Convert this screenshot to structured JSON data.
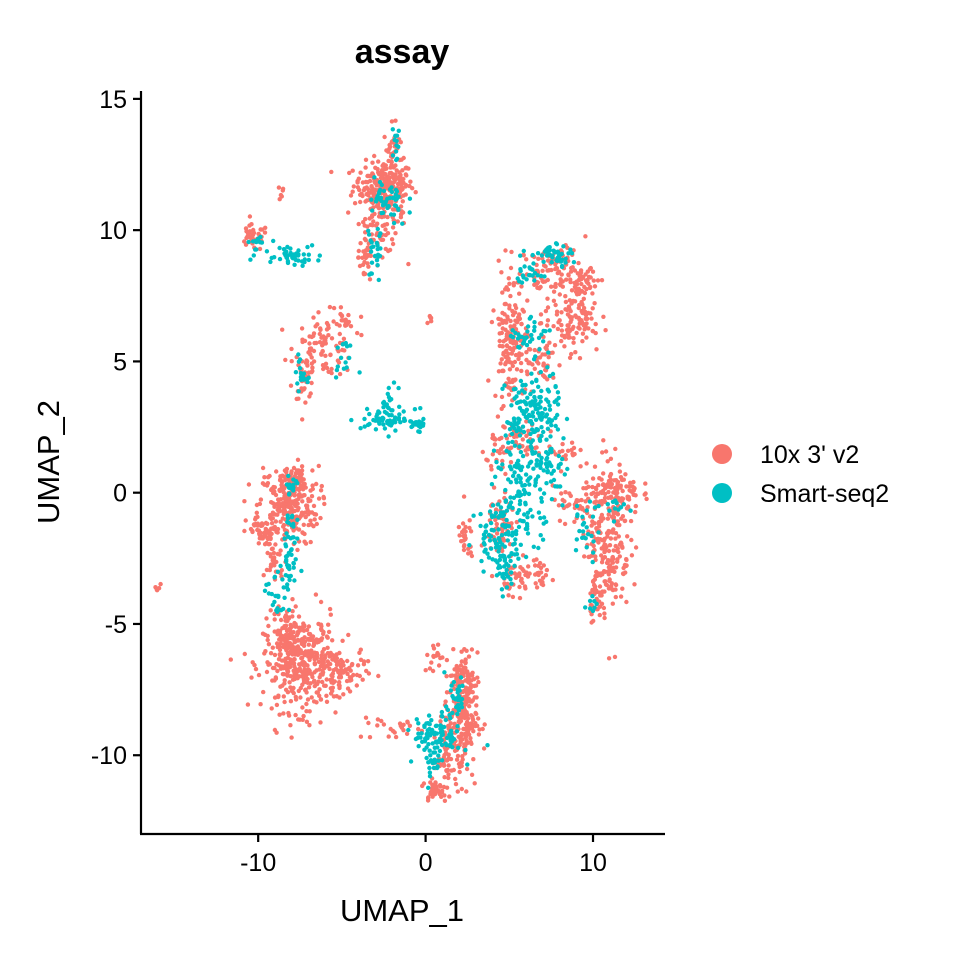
{
  "chart_data": {
    "type": "scatter",
    "title": "assay",
    "xlabel": "UMAP_1",
    "ylabel": "UMAP_2",
    "xlim": [
      -17,
      14.3
    ],
    "ylim": [
      -13,
      15.3
    ],
    "x_ticks": [
      -10,
      0,
      10
    ],
    "y_ticks": [
      15,
      10,
      5,
      0,
      -5,
      -10
    ],
    "x_tick_labels": [
      "-10",
      "0",
      "10"
    ],
    "y_tick_labels": [
      "15",
      "10",
      "5",
      "0",
      "-5",
      "-10"
    ],
    "grid": false,
    "legend_position": "right",
    "series": [
      {
        "name": "10x 3' v2",
        "color": "#F8766D",
        "clusters": [
          {
            "x": -2.5,
            "y": 11.7,
            "sx": 0.9,
            "sy": 0.45,
            "n": 180
          },
          {
            "x": -2.0,
            "y": 12.9,
            "sx": 0.25,
            "sy": 0.55,
            "n": 45
          },
          {
            "x": -2.6,
            "y": 10.5,
            "sx": 0.7,
            "sy": 0.7,
            "n": 110
          },
          {
            "x": -3.6,
            "y": 9.0,
            "sx": 0.2,
            "sy": 0.6,
            "n": 25
          },
          {
            "x": -10.3,
            "y": 9.7,
            "sx": 0.45,
            "sy": 0.25,
            "n": 40
          },
          {
            "x": -8.6,
            "y": 11.4,
            "sx": 0.12,
            "sy": 0.15,
            "n": 6
          },
          {
            "x": -6.0,
            "y": 5.6,
            "sx": 0.9,
            "sy": 0.6,
            "n": 90
          },
          {
            "x": -7.2,
            "y": 4.4,
            "sx": 0.3,
            "sy": 0.4,
            "n": 30
          },
          {
            "x": -4.8,
            "y": 6.5,
            "sx": 0.3,
            "sy": 0.25,
            "n": 15
          },
          {
            "x": 0.2,
            "y": 6.6,
            "sx": 0.1,
            "sy": 0.12,
            "n": 6
          },
          {
            "x": -8.2,
            "y": -0.5,
            "sx": 0.9,
            "sy": 0.75,
            "n": 250
          },
          {
            "x": -7.8,
            "y": 0.5,
            "sx": 0.3,
            "sy": 0.25,
            "n": 50
          },
          {
            "x": -9.7,
            "y": -1.5,
            "sx": 0.5,
            "sy": 0.3,
            "n": 45
          },
          {
            "x": -9.0,
            "y": -2.5,
            "sx": 0.3,
            "sy": 0.5,
            "n": 30
          },
          {
            "x": -7.5,
            "y": -6.5,
            "sx": 1.1,
            "sy": 0.9,
            "n": 380
          },
          {
            "x": -5.2,
            "y": -6.8,
            "sx": 0.8,
            "sy": 0.45,
            "n": 90
          },
          {
            "x": -8.3,
            "y": -5.3,
            "sx": 0.4,
            "sy": 0.4,
            "n": 50
          },
          {
            "x": -16.0,
            "y": -3.6,
            "sx": 0.08,
            "sy": 0.1,
            "n": 6
          },
          {
            "x": 2.1,
            "y": -8.5,
            "sx": 0.5,
            "sy": 1.2,
            "n": 230
          },
          {
            "x": 2.3,
            "y": -7.2,
            "sx": 0.4,
            "sy": 0.4,
            "n": 40
          },
          {
            "x": 0.6,
            "y": -11.3,
            "sx": 0.4,
            "sy": 0.25,
            "n": 35
          },
          {
            "x": 1.3,
            "y": -10.3,
            "sx": 0.4,
            "sy": 0.5,
            "n": 40
          },
          {
            "x": -2.0,
            "y": -8.9,
            "sx": 1.0,
            "sy": 0.25,
            "n": 25
          },
          {
            "x": 0.7,
            "y": -6.3,
            "sx": 0.4,
            "sy": 0.3,
            "n": 15
          },
          {
            "x": 5.0,
            "y": 6.0,
            "sx": 0.45,
            "sy": 1.3,
            "n": 150
          },
          {
            "x": 7.8,
            "y": 8.4,
            "sx": 1.1,
            "sy": 0.5,
            "n": 110
          },
          {
            "x": 8.5,
            "y": 6.4,
            "sx": 0.8,
            "sy": 0.5,
            "n": 80
          },
          {
            "x": 9.3,
            "y": 7.5,
            "sx": 0.4,
            "sy": 0.8,
            "n": 60
          },
          {
            "x": 6.6,
            "y": 5.0,
            "sx": 0.8,
            "sy": 0.5,
            "n": 50
          },
          {
            "x": 5.5,
            "y": 2.0,
            "sx": 0.8,
            "sy": 0.3,
            "n": 50
          },
          {
            "x": 8.3,
            "y": 1.6,
            "sx": 0.4,
            "sy": 0.35,
            "n": 20
          },
          {
            "x": 10.9,
            "y": -1.7,
            "sx": 0.65,
            "sy": 1.5,
            "n": 220
          },
          {
            "x": 11.4,
            "y": 0.0,
            "sx": 0.7,
            "sy": 0.4,
            "n": 80
          },
          {
            "x": 10.2,
            "y": -4.0,
            "sx": 0.25,
            "sy": 0.4,
            "n": 25
          },
          {
            "x": 9.0,
            "y": -0.5,
            "sx": 0.7,
            "sy": 0.35,
            "n": 40
          },
          {
            "x": 4.5,
            "y": -1.3,
            "sx": 0.4,
            "sy": 0.8,
            "n": 60
          },
          {
            "x": 5.5,
            "y": -3.2,
            "sx": 0.4,
            "sy": 0.3,
            "n": 35
          },
          {
            "x": 6.8,
            "y": -3.2,
            "sx": 0.5,
            "sy": 0.25,
            "n": 30
          },
          {
            "x": 2.4,
            "y": -1.8,
            "sx": 0.25,
            "sy": 0.5,
            "n": 25
          },
          {
            "x": 4.3,
            "y": 1.3,
            "sx": 0.5,
            "sy": 0.3,
            "n": 20
          }
        ]
      },
      {
        "name": "Smart-seq2",
        "color": "#00BFC4",
        "clusters": [
          {
            "x": -2.3,
            "y": 11.0,
            "sx": 0.6,
            "sy": 0.5,
            "n": 45
          },
          {
            "x": -3.0,
            "y": 9.2,
            "sx": 0.25,
            "sy": 0.6,
            "n": 25
          },
          {
            "x": -1.8,
            "y": 13.2,
            "sx": 0.15,
            "sy": 0.3,
            "n": 12
          },
          {
            "x": -8.0,
            "y": 9.1,
            "sx": 0.9,
            "sy": 0.2,
            "n": 45
          },
          {
            "x": -10.0,
            "y": 9.5,
            "sx": 0.3,
            "sy": 0.15,
            "n": 12
          },
          {
            "x": -7.5,
            "y": 4.5,
            "sx": 0.2,
            "sy": 0.3,
            "n": 18
          },
          {
            "x": -4.9,
            "y": 5.1,
            "sx": 0.3,
            "sy": 0.3,
            "n": 15
          },
          {
            "x": -2.2,
            "y": 2.8,
            "sx": 0.8,
            "sy": 0.2,
            "n": 55
          },
          {
            "x": -2.2,
            "y": 3.3,
            "sx": 0.25,
            "sy": 0.5,
            "n": 20
          },
          {
            "x": -0.6,
            "y": 2.6,
            "sx": 0.5,
            "sy": 0.12,
            "n": 20
          },
          {
            "x": -8.1,
            "y": -2.3,
            "sx": 0.25,
            "sy": 0.9,
            "n": 45
          },
          {
            "x": -8.9,
            "y": -4.0,
            "sx": 0.3,
            "sy": 0.6,
            "n": 25
          },
          {
            "x": -8.0,
            "y": 0.3,
            "sx": 0.3,
            "sy": 0.2,
            "n": 15
          },
          {
            "x": 0.7,
            "y": -9.3,
            "sx": 0.7,
            "sy": 0.35,
            "n": 90
          },
          {
            "x": 1.8,
            "y": -7.8,
            "sx": 0.3,
            "sy": 0.6,
            "n": 35
          },
          {
            "x": 0.3,
            "y": -10.4,
            "sx": 0.35,
            "sy": 0.3,
            "n": 20
          },
          {
            "x": 6.4,
            "y": 3.0,
            "sx": 0.8,
            "sy": 0.8,
            "n": 150
          },
          {
            "x": 6.0,
            "y": 0.2,
            "sx": 0.9,
            "sy": 1.0,
            "n": 130
          },
          {
            "x": 4.4,
            "y": -1.6,
            "sx": 0.7,
            "sy": 0.6,
            "n": 85
          },
          {
            "x": 4.8,
            "y": -3.0,
            "sx": 0.3,
            "sy": 0.35,
            "n": 30
          },
          {
            "x": 7.8,
            "y": 9.1,
            "sx": 0.5,
            "sy": 0.2,
            "n": 45
          },
          {
            "x": 6.2,
            "y": 8.5,
            "sx": 0.4,
            "sy": 0.3,
            "n": 25
          },
          {
            "x": 6.2,
            "y": 6.0,
            "sx": 0.6,
            "sy": 0.5,
            "n": 35
          },
          {
            "x": 7.5,
            "y": 1.0,
            "sx": 0.5,
            "sy": 0.35,
            "n": 25
          },
          {
            "x": 9.5,
            "y": -1.5,
            "sx": 0.4,
            "sy": 0.6,
            "n": 25
          },
          {
            "x": 11.3,
            "y": -0.6,
            "sx": 0.4,
            "sy": 0.3,
            "n": 12
          },
          {
            "x": 10.0,
            "y": -4.2,
            "sx": 0.2,
            "sy": 0.2,
            "n": 8
          }
        ]
      }
    ]
  }
}
